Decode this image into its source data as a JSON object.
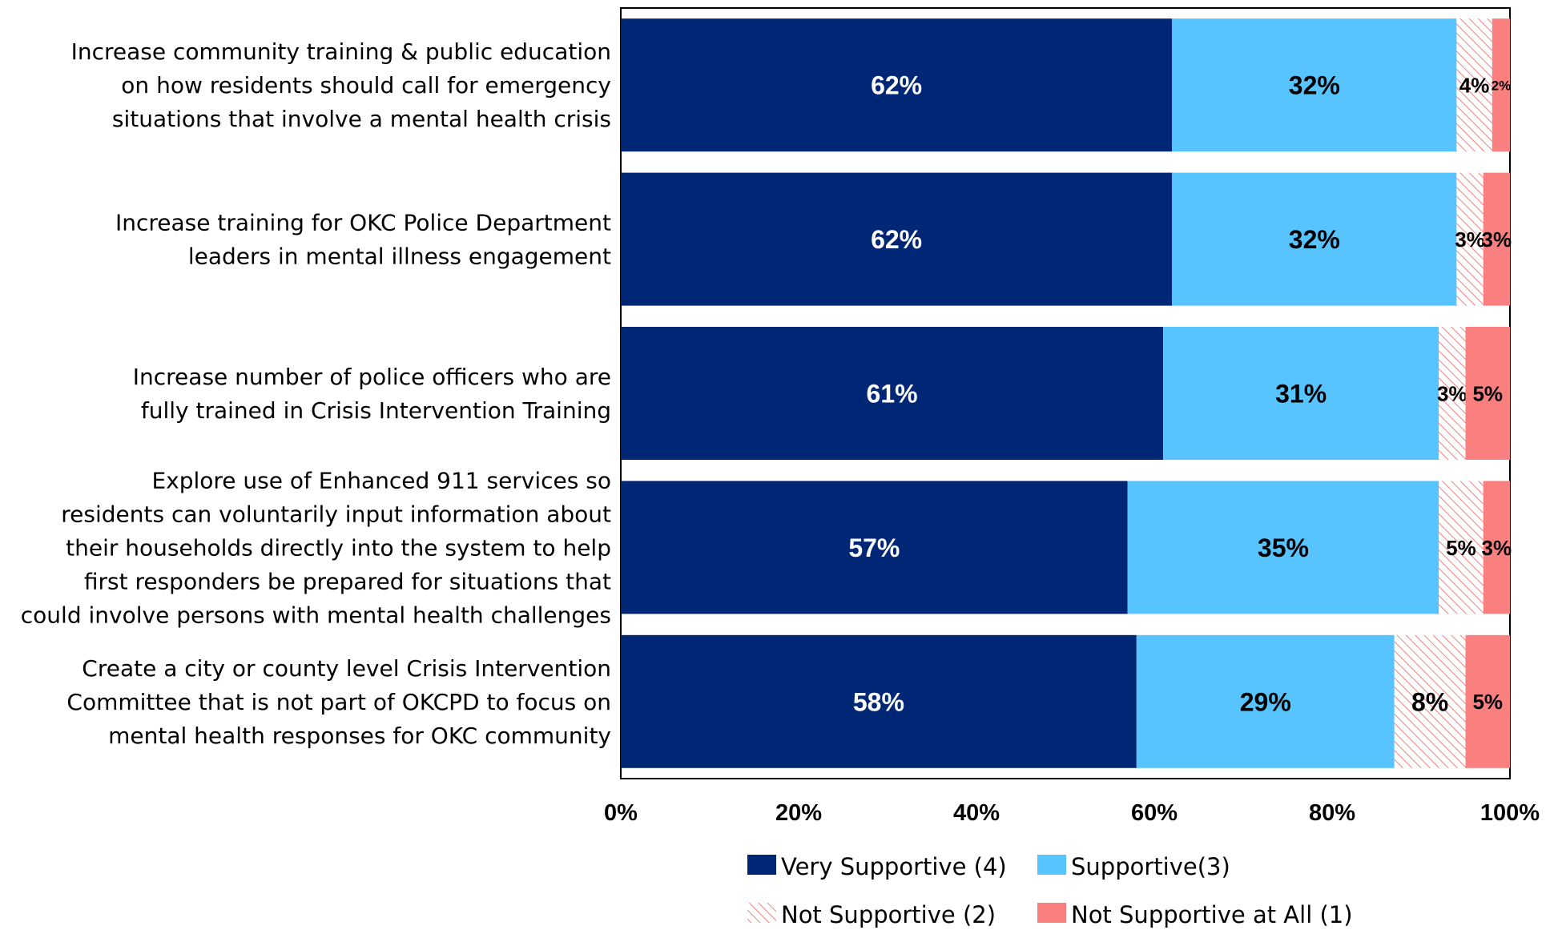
{
  "chart_data": {
    "type": "bar",
    "orientation": "horizontal",
    "stacked": true,
    "categories": [
      [
        "Increase community training  & public education",
        "on how residents should call for emergency",
        "situations that involve a mental health crisis"
      ],
      [
        "Increase training for OKC Police Department",
        "leaders in mental illness engagement"
      ],
      [
        "Increase number of police officers who are",
        "fully trained in Crisis Intervention Training"
      ],
      [
        "Explore use of Enhanced 911 services so",
        "residents can voluntarily input information about",
        "their households directly into the system to help",
        "first responders be prepared for situations that",
        "could involve persons with mental health challenges"
      ],
      [
        "Create a city or county level Crisis Intervention",
        "Committee that is not part of OKCPD to focus on",
        "mental health responses for OKC community"
      ]
    ],
    "series": [
      {
        "name": "Very Supportive (4)",
        "color": "#002776",
        "label_color": "#ffffff",
        "values": [
          62,
          62,
          61,
          57,
          58
        ]
      },
      {
        "name": "Supportive(3)",
        "color": "#57C4FF",
        "label_color": "#000000",
        "values": [
          32,
          32,
          31,
          35,
          29
        ]
      },
      {
        "name": "Not Supportive (2)",
        "color": "#F28080",
        "pattern": "hatch",
        "label_color": "#000000",
        "values": [
          4,
          3,
          3,
          5,
          8
        ]
      },
      {
        "name": "Not Supportive at All (1)",
        "color": "#FA8080",
        "label_color": "#000000",
        "values": [
          2,
          3,
          5,
          3,
          5
        ]
      }
    ],
    "data_labels": [
      [
        "62%",
        "32%",
        "4%",
        "2%"
      ],
      [
        "62%",
        "32%",
        "3%",
        "3%"
      ],
      [
        "61%",
        "31%",
        "3%",
        "5%"
      ],
      [
        "57%",
        "35%",
        "5%",
        "3%"
      ],
      [
        "58%",
        "29%",
        "8%",
        "5%"
      ]
    ],
    "x_ticks": [
      "0%",
      "20%",
      "40%",
      "60%",
      "80%",
      "100%"
    ],
    "xlim": [
      0,
      100
    ],
    "legend_position": "bottom",
    "grid": false
  }
}
